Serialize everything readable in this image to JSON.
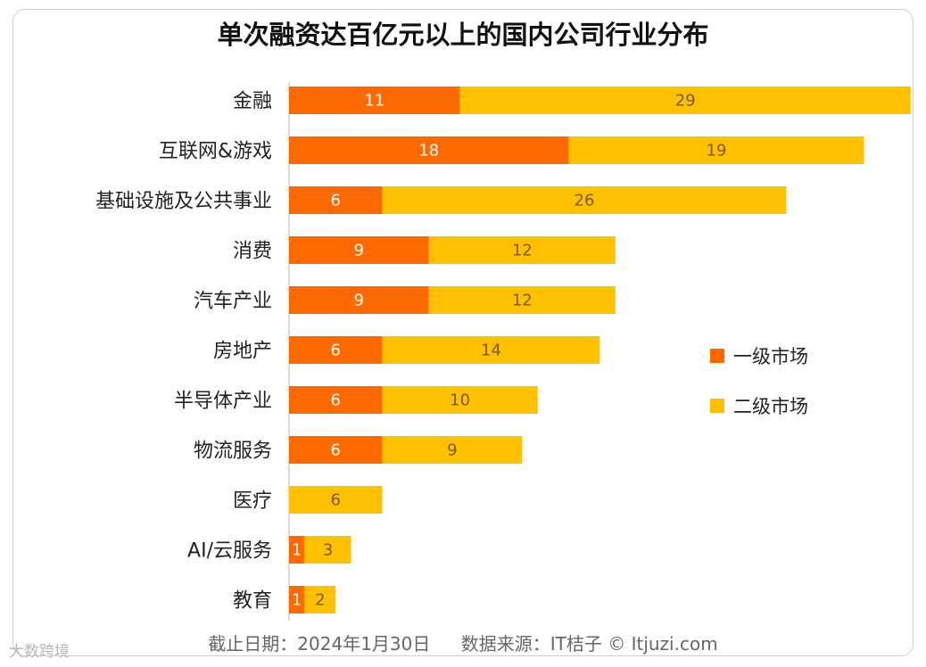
{
  "chart_data": {
    "type": "bar",
    "orientation": "horizontal",
    "stacked": true,
    "title": "单次融资达百亿元以上的国内公司行业分布",
    "categories": [
      "金融",
      "互联网&游戏",
      "基础设施及公共事业",
      "消费",
      "汽车产业",
      "房地产",
      "半导体产业",
      "物流服务",
      "医疗",
      "AI/云服务",
      "教育"
    ],
    "series": [
      {
        "name": "一级市场",
        "color": "#FF6A00",
        "values": [
          11,
          18,
          6,
          9,
          9,
          6,
          6,
          6,
          0,
          1,
          1
        ]
      },
      {
        "name": "二级市场",
        "color": "#FFC000",
        "values": [
          29,
          19,
          26,
          12,
          12,
          14,
          10,
          9,
          6,
          3,
          2
        ]
      }
    ],
    "xlim": [
      0,
      40
    ],
    "legend": "right",
    "grid": false
  },
  "footer": {
    "date": "截止日期：2024年1月30日",
    "source": "数据来源：IT桔子 © Itjuzi.com"
  },
  "watermark": "大数跨境"
}
